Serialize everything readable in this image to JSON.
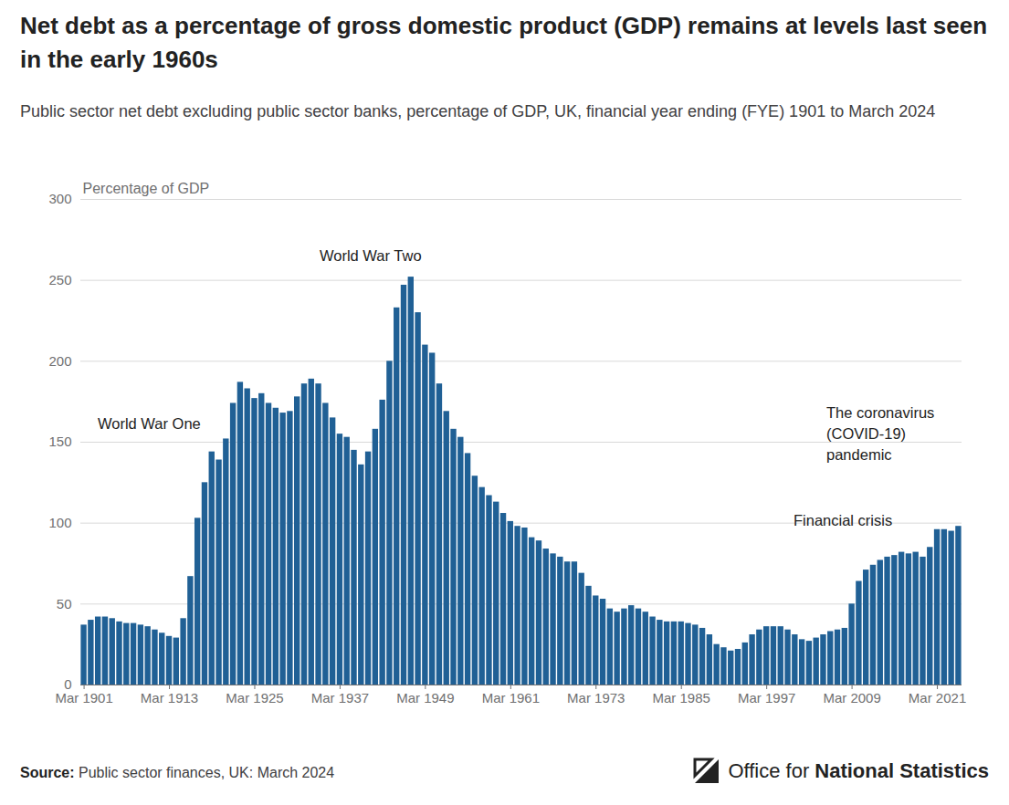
{
  "chart_data": {
    "type": "bar",
    "title": "Net debt as a percentage of gross domestic product (GDP) remains at levels last seen in the early 1960s",
    "subtitle": "Public sector net debt excluding public sector banks, percentage of GDP, UK, financial year ending (FYE) 1901 to March 2024",
    "y_label": "Percentage of GDP",
    "annotations": [
      "World War One",
      "World War Two",
      "The coronavirus (COVID-19) pandemic",
      "Financial crisis"
    ],
    "source_label": "Source:",
    "source": "Public sector finances, UK: March 2024",
    "logo": [
      "Office for",
      "National Statistics"
    ],
    "color": "#206095",
    "grid": true,
    "ylim": [
      0,
      300
    ],
    "yticks": [
      0,
      50,
      100,
      150,
      200,
      250,
      300
    ],
    "categories": [
      "Mar 1901",
      null,
      null,
      null,
      null,
      null,
      null,
      null,
      null,
      null,
      null,
      null,
      "Mar 1913",
      null,
      null,
      null,
      null,
      null,
      null,
      null,
      null,
      null,
      null,
      null,
      "Mar 1925",
      null,
      null,
      null,
      null,
      null,
      null,
      null,
      null,
      null,
      null,
      null,
      "Mar 1937",
      null,
      null,
      null,
      null,
      null,
      null,
      null,
      null,
      null,
      null,
      null,
      "Mar 1949",
      null,
      null,
      null,
      null,
      null,
      null,
      null,
      null,
      null,
      null,
      null,
      "Mar 1961",
      null,
      null,
      null,
      null,
      null,
      null,
      null,
      null,
      null,
      null,
      null,
      "Mar 1973",
      null,
      null,
      null,
      null,
      null,
      null,
      null,
      null,
      null,
      null,
      null,
      "Mar 1985",
      null,
      null,
      null,
      null,
      null,
      null,
      null,
      null,
      null,
      null,
      null,
      "Mar 1997",
      null,
      null,
      null,
      null,
      null,
      null,
      null,
      null,
      null,
      null,
      null,
      "Mar 2009",
      null,
      null,
      null,
      null,
      null,
      null,
      null,
      null,
      null,
      null,
      null,
      "Mar 2021",
      null,
      null,
      null
    ],
    "values": [
      37,
      40,
      42,
      42,
      41,
      39,
      38,
      38,
      37,
      36,
      34,
      32,
      30,
      29,
      41,
      67,
      103,
      125,
      144,
      139,
      152,
      174,
      187,
      183,
      177,
      180,
      174,
      171,
      168,
      169,
      178,
      186,
      189,
      186,
      174,
      165,
      155,
      153,
      145,
      136,
      144,
      158,
      176,
      200,
      233,
      247,
      252,
      230,
      210,
      205,
      186,
      169,
      158,
      153,
      143,
      129,
      122,
      117,
      113,
      106,
      101,
      98,
      97,
      91,
      89,
      84,
      81,
      79,
      76,
      76,
      69,
      61,
      55,
      53,
      47,
      45,
      47,
      49,
      47,
      45,
      42,
      40,
      39,
      39,
      39,
      38,
      37,
      35,
      31,
      25,
      23,
      21,
      22,
      26,
      31,
      34,
      36,
      36,
      36,
      34,
      31,
      28,
      27,
      29,
      31,
      33,
      34,
      35,
      50,
      64,
      71,
      74,
      77,
      79,
      80,
      82,
      81,
      82,
      79,
      85,
      96,
      96,
      95,
      98
    ]
  }
}
